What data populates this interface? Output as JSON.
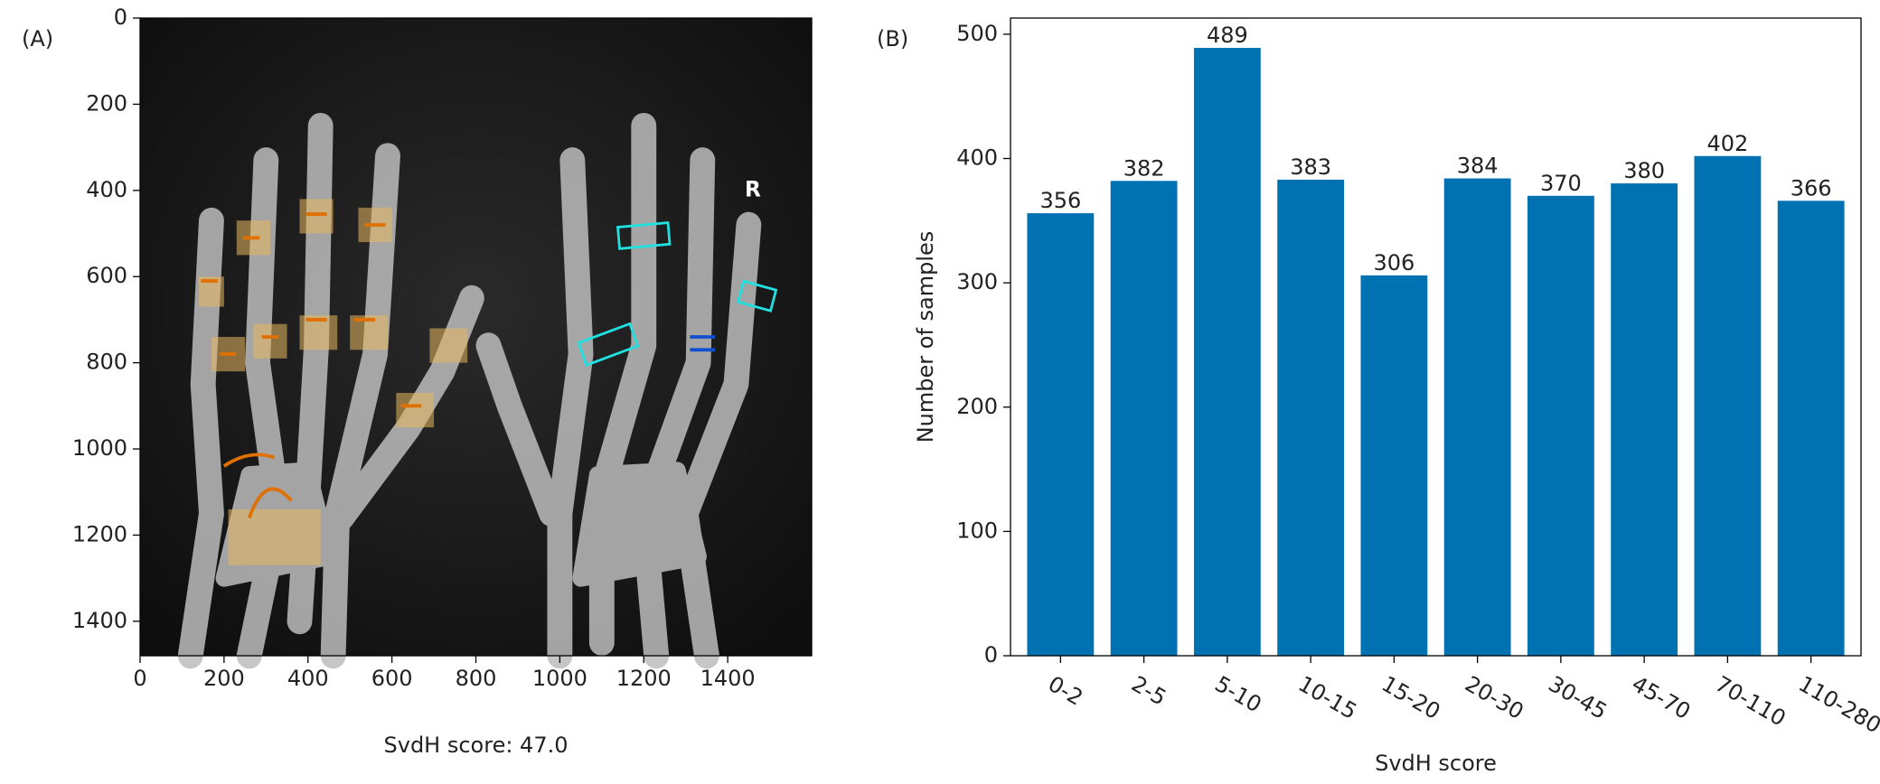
{
  "chart_data": [
    {
      "type": "image",
      "panel_label": "(A)",
      "xlabel": "SvdH score: 47.0",
      "xlim": [
        0,
        1600
      ],
      "ylim": [
        1480,
        0
      ],
      "xticks": [
        0,
        200,
        400,
        600,
        800,
        1000,
        1200,
        1400
      ],
      "yticks": [
        0,
        200,
        400,
        600,
        800,
        1000,
        1200,
        1400
      ],
      "annotations": [
        "R"
      ]
    },
    {
      "type": "bar",
      "panel_label": "(B)",
      "xlabel": "SvdH score",
      "ylabel": "Number of samples",
      "categories": [
        "0-2",
        "2-5",
        "5-10",
        "10-15",
        "15-20",
        "20-30",
        "30-45",
        "45-70",
        "70-110",
        "110-280"
      ],
      "values": [
        356,
        382,
        489,
        383,
        306,
        384,
        370,
        380,
        402,
        366
      ],
      "color": "#0072b2",
      "ylim": [
        0,
        513
      ],
      "yticks": [
        0,
        100,
        200,
        300,
        400,
        500
      ]
    }
  ]
}
